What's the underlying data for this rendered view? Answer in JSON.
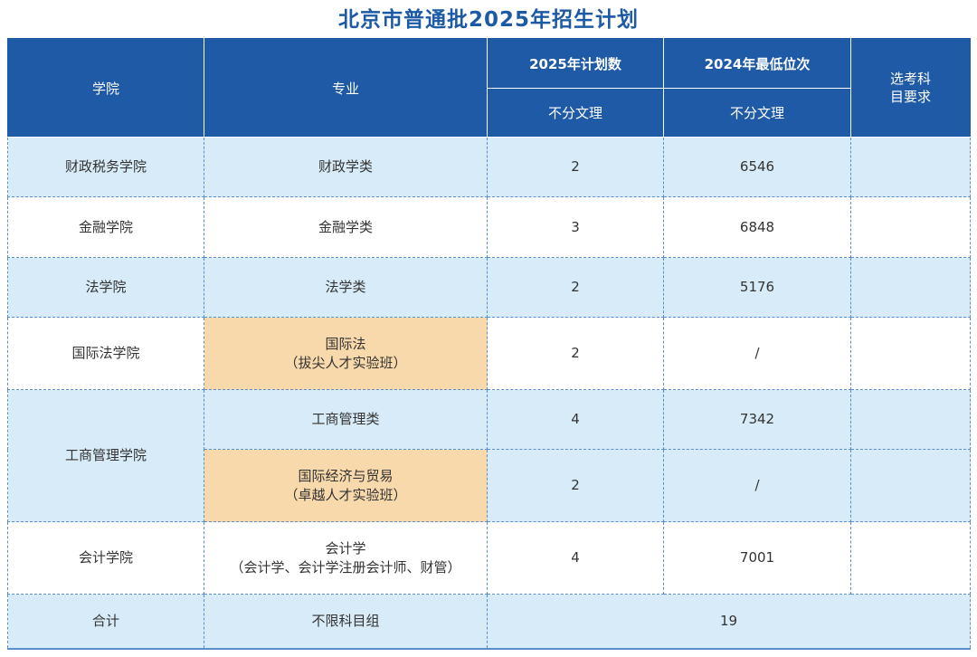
{
  "title": "北京市普通批2025年招生计划",
  "headers": {
    "college": "学院",
    "major": "专业",
    "plan_2025": "2025年计划数",
    "min_rank_2024": "2024年最低位次",
    "subject_req": "选考科目要求",
    "plan_sub": "不分文理",
    "rank_sub": "不分文理"
  },
  "rows": [
    {
      "college": "财政税务学院",
      "major_line1": "财政学类",
      "major_line2": "",
      "plan": "2",
      "rank": "6546",
      "req": ""
    },
    {
      "college": "金融学院",
      "major_line1": "金融学类",
      "major_line2": "",
      "plan": "3",
      "rank": "6848",
      "req": ""
    },
    {
      "college": "法学院",
      "major_line1": "法学类",
      "major_line2": "",
      "plan": "2",
      "rank": "5176",
      "req": ""
    },
    {
      "college": "国际法学院",
      "major_line1": "国际法",
      "major_line2": "（拔尖人才实验班）",
      "plan": "2",
      "rank": "/",
      "req": ""
    },
    {
      "college": "工商管理学院",
      "major_line1": "工商管理类",
      "major_line2": "",
      "plan": "4",
      "rank": "7342",
      "req": ""
    },
    {
      "college": "",
      "major_line1": "国际经济与贸易",
      "major_line2": "（卓越人才实验班）",
      "plan": "2",
      "rank": "/",
      "req": ""
    },
    {
      "college": "会计学院",
      "major_line1": "会计学",
      "major_line2": "（会计学、会计学注册会计师、财管）",
      "plan": "4",
      "rank": "7001",
      "req": ""
    }
  ],
  "total": {
    "label": "合计",
    "subject": "不限科目组",
    "count": "19"
  },
  "colors": {
    "header_bg": "#1f5aa6",
    "title": "#1c5aa5",
    "row_blue": "#d8ebf8",
    "highlight": "#f8d9ab"
  }
}
